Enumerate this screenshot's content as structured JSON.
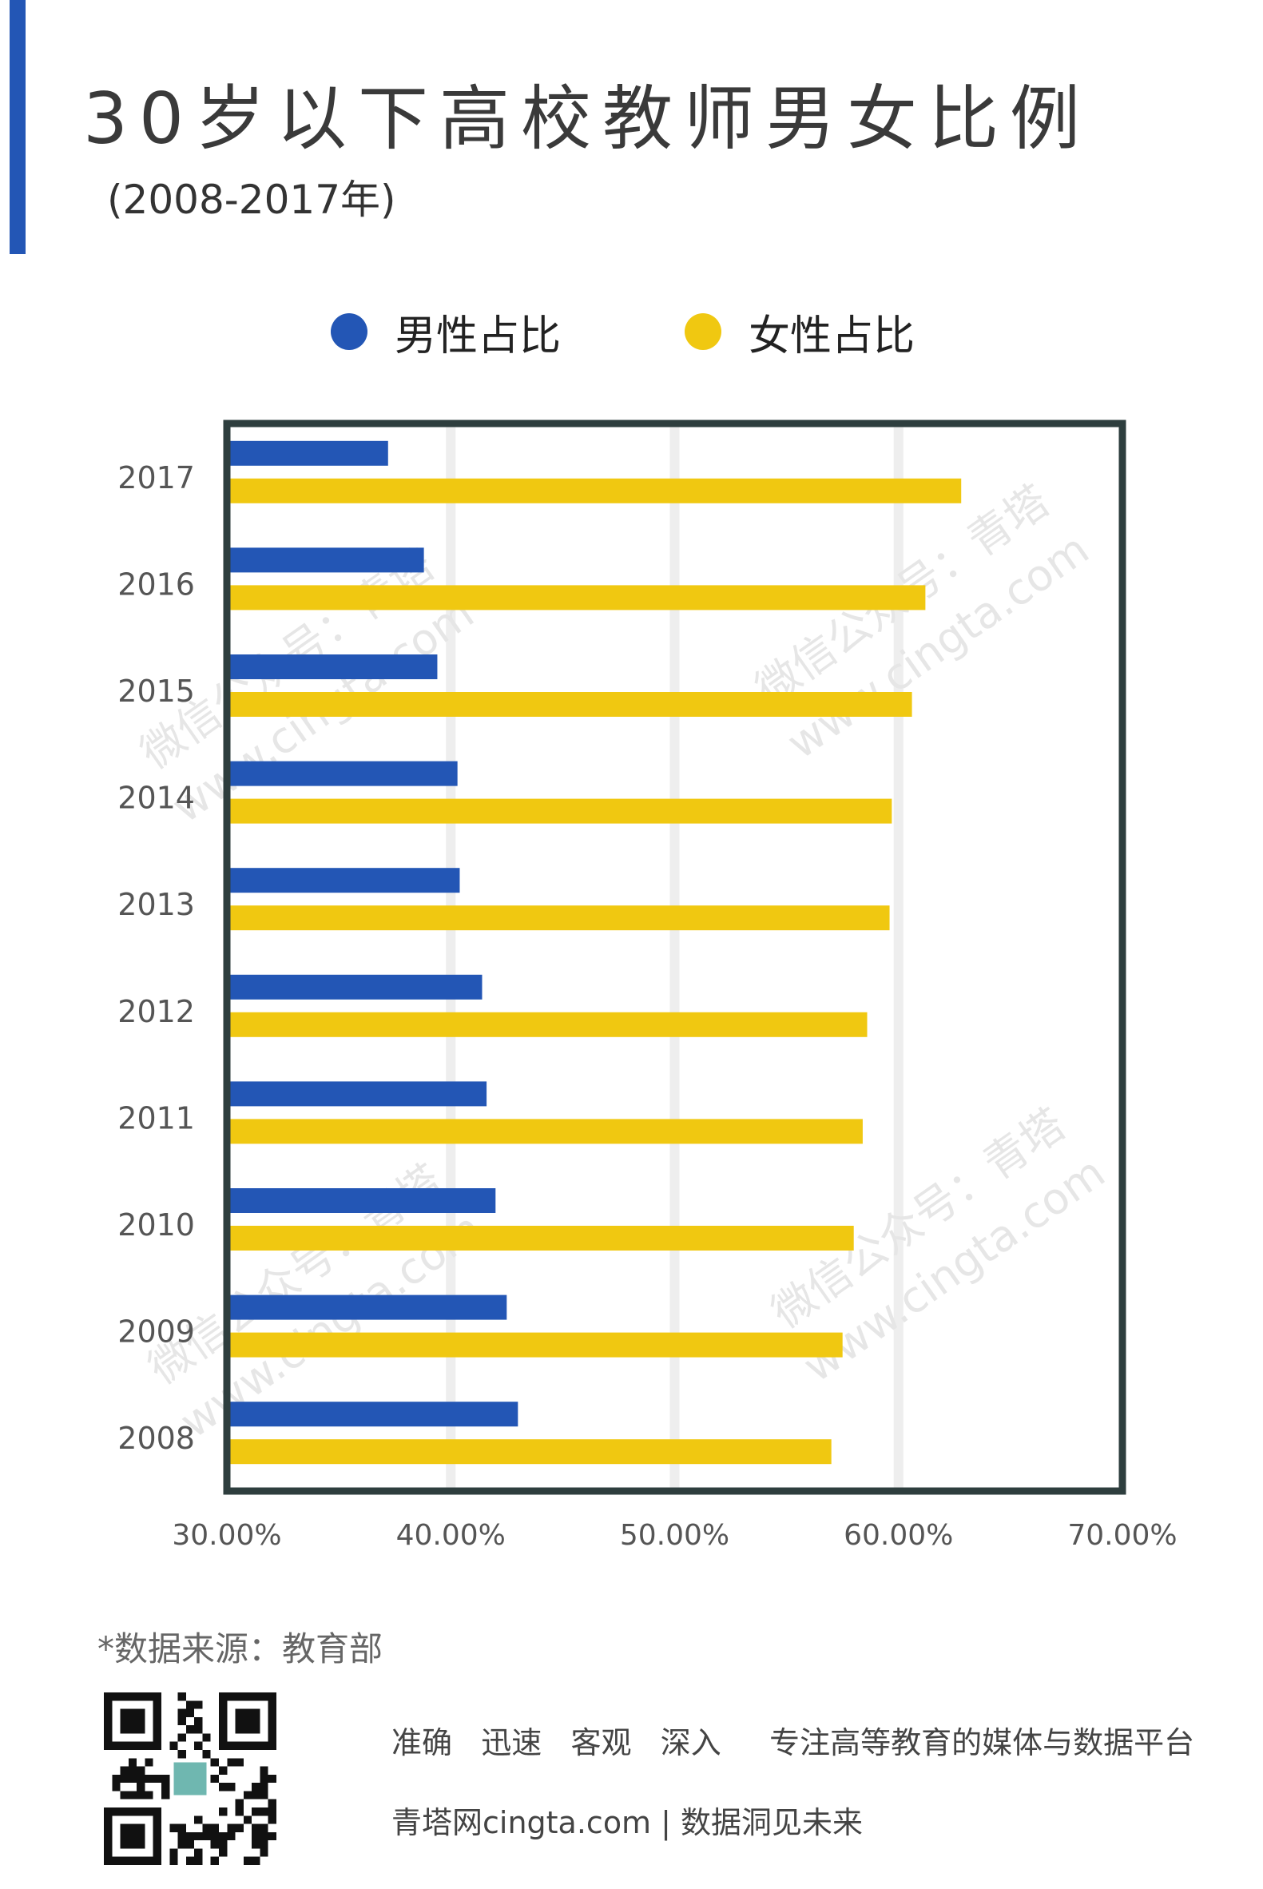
{
  "colors": {
    "accent": "#2356b5",
    "male": "#2356b5",
    "female": "#f0c811",
    "frame": "#2e3e3e",
    "grid": "#eeeeee",
    "watermark": "#e6e6e6"
  },
  "header": {
    "title": "30岁以下高校教师男女比例",
    "subtitle": "(2008-2017年)"
  },
  "legend": {
    "male_label": "男性占比",
    "female_label": "女性占比",
    "male_icon": "circle-icon",
    "female_icon": "circle-icon"
  },
  "chart_data": {
    "type": "bar",
    "orientation": "horizontal",
    "title": "30岁以下高校教师男女比例",
    "subtitle": "(2008-2017年)",
    "categories": [
      "2017",
      "2016",
      "2015",
      "2014",
      "2013",
      "2012",
      "2011",
      "2010",
      "2009",
      "2008"
    ],
    "series": [
      {
        "name": "男性占比",
        "color": "#2356b5",
        "values": [
          37.2,
          38.8,
          39.4,
          40.3,
          40.4,
          41.4,
          41.6,
          42.0,
          42.5,
          43.0
        ]
      },
      {
        "name": "女性占比",
        "color": "#f0c811",
        "values": [
          62.8,
          61.2,
          60.6,
          59.7,
          59.6,
          58.6,
          58.4,
          58.0,
          57.5,
          57.0
        ]
      }
    ],
    "xlim": [
      30,
      70
    ],
    "xticks": [
      "30.00%",
      "40.00%",
      "50.00%",
      "60.00%",
      "70.00%"
    ],
    "xtick_values": [
      30,
      40,
      50,
      60,
      70
    ],
    "grid": true,
    "legend_position": "top"
  },
  "watermarks": [
    "微信公众号：青塔",
    "www.cingta.com"
  ],
  "footer": {
    "source": "*数据来源：教育部",
    "slogan": "准确   迅速   客观   深入     专注高等教育的媒体与数据平台",
    "site": "青塔网cingta.com | 数据洞见未来",
    "qr_icon": "qr-code-icon"
  }
}
